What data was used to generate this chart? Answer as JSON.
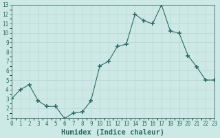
{
  "x": [
    0,
    1,
    2,
    3,
    4,
    5,
    6,
    7,
    8,
    9,
    10,
    11,
    12,
    13,
    14,
    15,
    16,
    17,
    18,
    19,
    20,
    21,
    22,
    23
  ],
  "y": [
    3.0,
    4.0,
    4.5,
    2.8,
    2.2,
    2.2,
    0.9,
    1.5,
    1.6,
    2.8,
    6.5,
    7.0,
    8.6,
    8.8,
    12.0,
    11.3,
    11.0,
    13.0,
    10.2,
    10.0,
    7.6,
    6.4,
    5.0,
    5.0
  ],
  "line_color": "#2e6b5e",
  "marker": "+",
  "marker_size": 4,
  "bg_color": "#cce9e5",
  "grid_major_color": "#b8d4d0",
  "grid_minor_color": "#d4e8e5",
  "xlabel": "Humidex (Indice chaleur)",
  "xlim": [
    0,
    23
  ],
  "ylim": [
    1,
    13
  ],
  "yticks": [
    1,
    2,
    3,
    4,
    5,
    6,
    7,
    8,
    9,
    10,
    11,
    12,
    13
  ],
  "xticks": [
    0,
    1,
    2,
    3,
    4,
    5,
    6,
    7,
    8,
    9,
    10,
    11,
    12,
    13,
    14,
    15,
    16,
    17,
    18,
    19,
    20,
    21,
    22,
    23
  ],
  "tick_fontsize": 5.5,
  "xlabel_fontsize": 7.5
}
